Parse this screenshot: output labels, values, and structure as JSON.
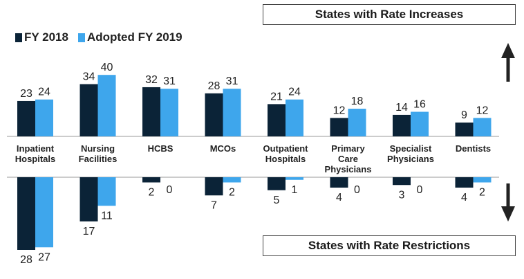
{
  "chart_data": {
    "type": "bar",
    "title_top": "States with Rate Increases",
    "title_bottom": "States with Rate Restrictions",
    "categories": [
      [
        "Inpatient",
        "Hospitals"
      ],
      [
        "Nursing",
        "Facilities"
      ],
      [
        "HCBS"
      ],
      [
        "MCOs"
      ],
      [
        "Outpatient",
        "Hospitals"
      ],
      [
        "Primary",
        "Care",
        "Physicians"
      ],
      [
        "Specialist",
        "Physicians"
      ],
      [
        "Dentists"
      ]
    ],
    "series": [
      {
        "name": "FY 2018",
        "color": "#0b2337",
        "increases": [
          23,
          34,
          32,
          28,
          21,
          12,
          14,
          9
        ],
        "restrictions": [
          28,
          17,
          2,
          7,
          5,
          4,
          3,
          4
        ]
      },
      {
        "name": "Adopted FY 2019",
        "color": "#3ea6ec",
        "increases": [
          24,
          40,
          31,
          31,
          24,
          18,
          16,
          12
        ],
        "restrictions": [
          27,
          11,
          0,
          2,
          1,
          0,
          0,
          2
        ]
      }
    ],
    "legend_position": "top-left",
    "grid": false
  }
}
